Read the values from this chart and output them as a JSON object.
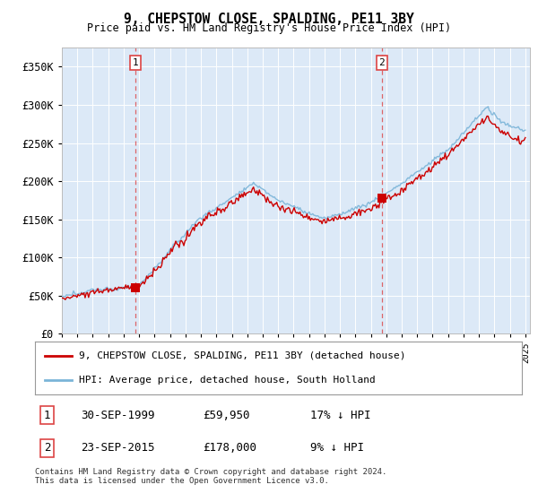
{
  "title": "9, CHEPSTOW CLOSE, SPALDING, PE11 3BY",
  "subtitle": "Price paid vs. HM Land Registry's House Price Index (HPI)",
  "ylabel_ticks": [
    "£0",
    "£50K",
    "£100K",
    "£150K",
    "£200K",
    "£250K",
    "£300K",
    "£350K"
  ],
  "ytick_vals": [
    0,
    50000,
    100000,
    150000,
    200000,
    250000,
    300000,
    350000
  ],
  "ylim": [
    0,
    375000
  ],
  "xlim_start": 1995.0,
  "xlim_end": 2025.3,
  "plot_bg": "#dce9f7",
  "fig_bg": "#f0f0f0",
  "sale1_x": 1999.75,
  "sale1_y": 59950,
  "sale2_x": 2015.72,
  "sale2_y": 178000,
  "legend_entries": [
    "9, CHEPSTOW CLOSE, SPALDING, PE11 3BY (detached house)",
    "HPI: Average price, detached house, South Holland"
  ],
  "ann1_date": "30-SEP-1999",
  "ann1_price": "£59,950",
  "ann1_hpi": "17% ↓ HPI",
  "ann2_date": "23-SEP-2015",
  "ann2_price": "£178,000",
  "ann2_hpi": "9% ↓ HPI",
  "footer": "Contains HM Land Registry data © Crown copyright and database right 2024.\nThis data is licensed under the Open Government Licence v3.0.",
  "hpi_color": "#7ab4d8",
  "price_color": "#cc0000",
  "vline_color": "#dd4444"
}
